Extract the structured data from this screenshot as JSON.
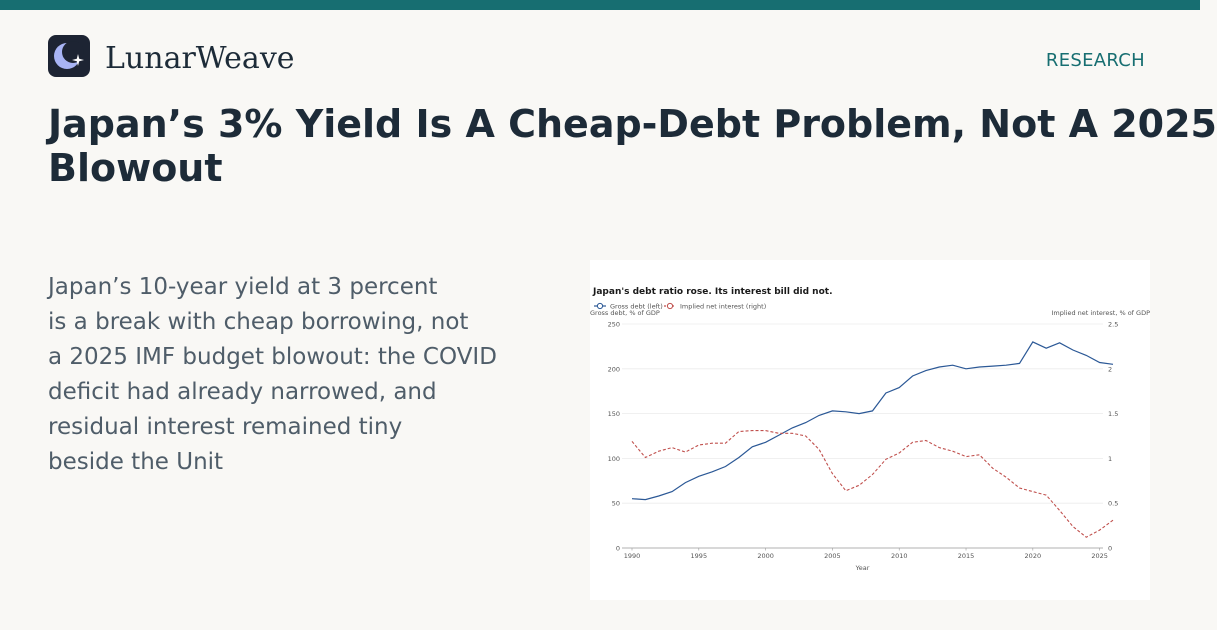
{
  "brand": {
    "name": "LunarWeave",
    "logo_icon": "moon-star-icon"
  },
  "section_label": "RESEARCH",
  "headline": {
    "line1": "Japan’s 3% Yield Is A Cheap-Debt Problem, Not A 2025",
    "line2": "Blowout"
  },
  "summary": [
    "Japan’s 10-year yield at 3 percent",
    "is a break with cheap borrowing, not",
    "a 2025 IMF budget blowout: the COVID",
    "deficit had already narrowed, and",
    "residual interest remained tiny",
    "beside the Unit"
  ],
  "colors": {
    "accent": "#176e71",
    "series_left": "#2b5896",
    "series_right": "#c0504d"
  },
  "chart_data": {
    "type": "line",
    "title": "Japan's debt ratio rose. Its interest bill did not.",
    "xlabel": "Year",
    "ylabel_left": "Gross debt, % of GDP",
    "ylabel_right": "Implied net interest, % of GDP",
    "xlim": [
      1990,
      2026
    ],
    "ylim_left": [
      0,
      250
    ],
    "ylim_right": [
      0,
      2.5
    ],
    "x_ticks": [
      1990,
      1995,
      2000,
      2005,
      2010,
      2015,
      2020,
      2025
    ],
    "y_ticks_left": [
      0,
      50,
      100,
      150,
      200,
      250
    ],
    "y_ticks_right": [
      "0",
      "0.5",
      "1",
      "1.5",
      "2",
      "2.5"
    ],
    "legend_position": "top-left",
    "grid": true,
    "series": [
      {
        "name": "Gross debt (left)",
        "axis": "left",
        "style": "solid",
        "x": [
          1990,
          1991,
          1992,
          1993,
          1994,
          1995,
          1996,
          1997,
          1998,
          1999,
          2000,
          2001,
          2002,
          2003,
          2004,
          2005,
          2006,
          2007,
          2008,
          2009,
          2010,
          2011,
          2012,
          2013,
          2014,
          2015,
          2016,
          2017,
          2018,
          2019,
          2020,
          2021,
          2022,
          2023,
          2024,
          2025,
          2026
        ],
        "values": [
          55,
          54,
          58,
          63,
          73,
          80,
          85,
          91,
          101,
          113,
          118,
          126,
          134,
          140,
          148,
          153,
          152,
          150,
          153,
          173,
          179,
          192,
          198,
          202,
          204,
          200,
          202,
          203,
          204,
          206,
          230,
          223,
          229,
          221,
          215,
          207,
          205
        ]
      },
      {
        "name": "Implied net interest (right)",
        "axis": "right",
        "style": "dashed",
        "x": [
          1990,
          1991,
          1992,
          1993,
          1994,
          1995,
          1996,
          1997,
          1998,
          1999,
          2000,
          2001,
          2002,
          2003,
          2004,
          2005,
          2006,
          2007,
          2008,
          2009,
          2010,
          2011,
          2012,
          2013,
          2014,
          2015,
          2016,
          2017,
          2018,
          2019,
          2020,
          2021,
          2022,
          2023,
          2024,
          2025,
          2026
        ],
        "values": [
          1.19,
          1.01,
          1.08,
          1.12,
          1.07,
          1.15,
          1.17,
          1.17,
          1.3,
          1.31,
          1.31,
          1.28,
          1.28,
          1.25,
          1.1,
          0.83,
          0.64,
          0.7,
          0.82,
          0.99,
          1.06,
          1.18,
          1.2,
          1.12,
          1.08,
          1.02,
          1.04,
          0.89,
          0.79,
          0.67,
          0.63,
          0.59,
          0.42,
          0.24,
          0.12,
          0.2,
          0.31
        ]
      }
    ]
  }
}
